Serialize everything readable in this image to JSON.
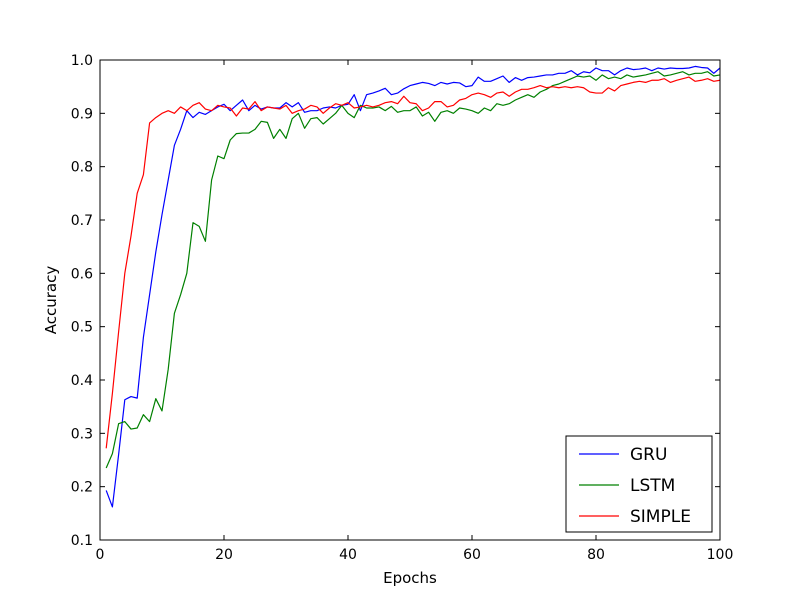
{
  "chart_data": {
    "type": "line",
    "xlabel": "Epochs",
    "ylabel": "Accuracy",
    "xlim": [
      0,
      100
    ],
    "ylim": [
      0.1,
      1.0
    ],
    "xticks": [
      0,
      20,
      40,
      60,
      80,
      100
    ],
    "yticks": [
      0.1,
      0.2,
      0.3,
      0.4,
      0.5,
      0.6,
      0.7,
      0.8,
      0.9,
      1.0
    ],
    "xtick_labels": [
      "0",
      "20",
      "40",
      "60",
      "80",
      "100"
    ],
    "ytick_labels": [
      "0.1",
      "0.2",
      "0.3",
      "0.4",
      "0.5",
      "0.6",
      "0.7",
      "0.8",
      "0.9",
      "1.0"
    ],
    "grid": false,
    "legend_position": "bottom-right",
    "series": [
      {
        "name": "GRU",
        "color": "#0000ff",
        "x": [
          1,
          2,
          3,
          4,
          5,
          6,
          7,
          8,
          9,
          10,
          11,
          12,
          13,
          14,
          15,
          16,
          17,
          18,
          19,
          20,
          21,
          22,
          23,
          24,
          25,
          26,
          27,
          28,
          29,
          30,
          31,
          32,
          33,
          34,
          35,
          36,
          37,
          38,
          39,
          40,
          41,
          42,
          43,
          44,
          45,
          46,
          47,
          48,
          49,
          50,
          51,
          52,
          53,
          54,
          55,
          56,
          57,
          58,
          59,
          60,
          61,
          62,
          63,
          64,
          65,
          66,
          67,
          68,
          69,
          70,
          71,
          72,
          73,
          74,
          75,
          76,
          77,
          78,
          79,
          80,
          81,
          82,
          83,
          84,
          85,
          86,
          87,
          88,
          89,
          90,
          91,
          92,
          93,
          94,
          95,
          96,
          97,
          98,
          99,
          100
        ],
        "values": [
          0.193,
          0.162,
          0.26,
          0.363,
          0.369,
          0.366,
          0.48,
          0.56,
          0.64,
          0.71,
          0.775,
          0.84,
          0.87,
          0.905,
          0.892,
          0.902,
          0.898,
          0.905,
          0.912,
          0.917,
          0.905,
          0.915,
          0.925,
          0.905,
          0.915,
          0.908,
          0.912,
          0.91,
          0.91,
          0.92,
          0.912,
          0.92,
          0.902,
          0.905,
          0.905,
          0.91,
          0.912,
          0.91,
          0.915,
          0.917,
          0.935,
          0.905,
          0.935,
          0.938,
          0.942,
          0.947,
          0.935,
          0.938,
          0.946,
          0.952,
          0.955,
          0.958,
          0.956,
          0.952,
          0.958,
          0.955,
          0.958,
          0.957,
          0.95,
          0.952,
          0.968,
          0.96,
          0.96,
          0.965,
          0.97,
          0.958,
          0.967,
          0.962,
          0.967,
          0.968,
          0.97,
          0.972,
          0.972,
          0.975,
          0.975,
          0.98,
          0.972,
          0.978,
          0.976,
          0.985,
          0.98,
          0.98,
          0.972,
          0.98,
          0.985,
          0.982,
          0.983,
          0.985,
          0.98,
          0.985,
          0.983,
          0.985,
          0.984,
          0.984,
          0.985,
          0.988,
          0.986,
          0.985,
          0.975,
          0.985
        ]
      },
      {
        "name": "LSTM",
        "color": "#008000",
        "x": [
          1,
          2,
          3,
          4,
          5,
          6,
          7,
          8,
          9,
          10,
          11,
          12,
          13,
          14,
          15,
          16,
          17,
          18,
          19,
          20,
          21,
          22,
          23,
          24,
          25,
          26,
          27,
          28,
          29,
          30,
          31,
          32,
          33,
          34,
          35,
          36,
          37,
          38,
          39,
          40,
          41,
          42,
          43,
          44,
          45,
          46,
          47,
          48,
          49,
          50,
          51,
          52,
          53,
          54,
          55,
          56,
          57,
          58,
          59,
          60,
          61,
          62,
          63,
          64,
          65,
          66,
          67,
          68,
          69,
          70,
          71,
          72,
          73,
          74,
          75,
          76,
          77,
          78,
          79,
          80,
          81,
          82,
          83,
          84,
          85,
          86,
          87,
          88,
          89,
          90,
          91,
          92,
          93,
          94,
          95,
          96,
          97,
          98,
          99,
          100
        ],
        "values": [
          0.235,
          0.262,
          0.318,
          0.322,
          0.308,
          0.31,
          0.335,
          0.322,
          0.365,
          0.342,
          0.42,
          0.525,
          0.56,
          0.6,
          0.695,
          0.688,
          0.66,
          0.775,
          0.82,
          0.815,
          0.85,
          0.862,
          0.863,
          0.863,
          0.87,
          0.885,
          0.883,
          0.853,
          0.87,
          0.853,
          0.89,
          0.9,
          0.872,
          0.89,
          0.892,
          0.88,
          0.89,
          0.9,
          0.915,
          0.9,
          0.892,
          0.915,
          0.91,
          0.91,
          0.912,
          0.905,
          0.913,
          0.902,
          0.905,
          0.905,
          0.912,
          0.895,
          0.902,
          0.885,
          0.902,
          0.905,
          0.9,
          0.91,
          0.908,
          0.905,
          0.9,
          0.91,
          0.905,
          0.918,
          0.915,
          0.918,
          0.925,
          0.93,
          0.935,
          0.93,
          0.94,
          0.945,
          0.952,
          0.955,
          0.96,
          0.965,
          0.97,
          0.968,
          0.97,
          0.962,
          0.972,
          0.965,
          0.968,
          0.965,
          0.972,
          0.968,
          0.97,
          0.972,
          0.975,
          0.978,
          0.97,
          0.972,
          0.975,
          0.978,
          0.972,
          0.975,
          0.975,
          0.978,
          0.97,
          0.972
        ]
      },
      {
        "name": "SIMPLE",
        "color": "#ff0000",
        "x": [
          1,
          2,
          3,
          4,
          5,
          6,
          7,
          8,
          9,
          10,
          11,
          12,
          13,
          14,
          15,
          16,
          17,
          18,
          19,
          20,
          21,
          22,
          23,
          24,
          25,
          26,
          27,
          28,
          29,
          30,
          31,
          32,
          33,
          34,
          35,
          36,
          37,
          38,
          39,
          40,
          41,
          42,
          43,
          44,
          45,
          46,
          47,
          48,
          49,
          50,
          51,
          52,
          53,
          54,
          55,
          56,
          57,
          58,
          59,
          60,
          61,
          62,
          63,
          64,
          65,
          66,
          67,
          68,
          69,
          70,
          71,
          72,
          73,
          74,
          75,
          76,
          77,
          78,
          79,
          80,
          81,
          82,
          83,
          84,
          85,
          86,
          87,
          88,
          89,
          90,
          91,
          92,
          93,
          94,
          95,
          96,
          97,
          98,
          99,
          100
        ],
        "values": [
          0.272,
          0.375,
          0.49,
          0.6,
          0.67,
          0.75,
          0.785,
          0.882,
          0.892,
          0.9,
          0.905,
          0.9,
          0.912,
          0.905,
          0.915,
          0.92,
          0.908,
          0.905,
          0.915,
          0.912,
          0.91,
          0.895,
          0.91,
          0.908,
          0.922,
          0.905,
          0.912,
          0.91,
          0.908,
          0.915,
          0.9,
          0.905,
          0.908,
          0.915,
          0.912,
          0.9,
          0.91,
          0.918,
          0.915,
          0.92,
          0.91,
          0.912,
          0.915,
          0.912,
          0.915,
          0.92,
          0.922,
          0.918,
          0.932,
          0.92,
          0.918,
          0.905,
          0.91,
          0.922,
          0.922,
          0.912,
          0.915,
          0.925,
          0.928,
          0.935,
          0.938,
          0.935,
          0.93,
          0.938,
          0.94,
          0.932,
          0.94,
          0.945,
          0.945,
          0.948,
          0.952,
          0.948,
          0.95,
          0.948,
          0.95,
          0.948,
          0.95,
          0.948,
          0.94,
          0.938,
          0.938,
          0.948,
          0.942,
          0.952,
          0.955,
          0.958,
          0.96,
          0.958,
          0.962,
          0.962,
          0.965,
          0.958,
          0.962,
          0.965,
          0.968,
          0.96,
          0.962,
          0.965,
          0.96,
          0.962
        ]
      }
    ]
  }
}
